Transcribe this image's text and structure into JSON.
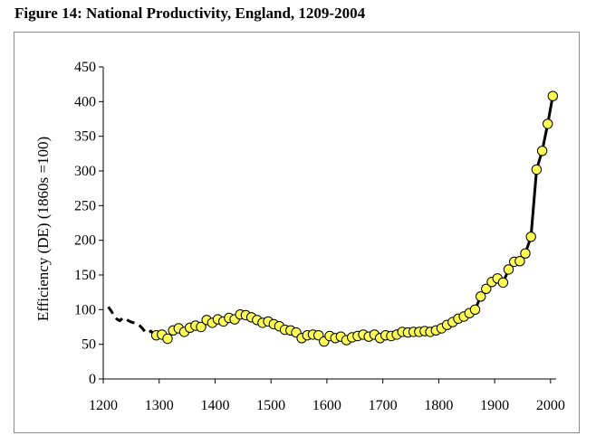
{
  "figure_title": "Figure 14:  National Productivity, England, 1209-2004",
  "colors": {
    "marker_fill": "#ffff55",
    "marker_stroke": "#000000",
    "line": "#000000",
    "frame": "#8c8c8c"
  },
  "chart_data": {
    "type": "line",
    "title": "",
    "xlabel": "",
    "ylabel": "Efficiency (DE) (1860s =100)",
    "xlim": [
      1200,
      2010
    ],
    "ylim": [
      0,
      450
    ],
    "xticks": [
      1200,
      1300,
      1400,
      1500,
      1600,
      1700,
      1800,
      1900,
      2000
    ],
    "yticks": [
      0,
      50,
      100,
      150,
      200,
      250,
      300,
      350,
      400,
      450
    ],
    "grid": false,
    "legend": "none",
    "series": [
      {
        "style": "dashed",
        "markers": false,
        "points": [
          [
            1209,
            104
          ],
          [
            1215,
            97
          ],
          [
            1220,
            90
          ],
          [
            1225,
            86
          ],
          [
            1230,
            84
          ],
          [
            1235,
            88
          ],
          [
            1240,
            87
          ],
          [
            1245,
            84
          ],
          [
            1250,
            82
          ],
          [
            1255,
            81
          ],
          [
            1260,
            80
          ],
          [
            1265,
            77
          ],
          [
            1270,
            73
          ],
          [
            1275,
            68
          ],
          [
            1280,
            66
          ],
          [
            1285,
            69
          ],
          [
            1290,
            65
          ]
        ]
      },
      {
        "style": "solid",
        "markers": true,
        "points": [
          [
            1295,
            63
          ],
          [
            1305,
            64
          ],
          [
            1315,
            58
          ],
          [
            1325,
            70
          ],
          [
            1335,
            73
          ],
          [
            1345,
            68
          ],
          [
            1355,
            74
          ],
          [
            1365,
            77
          ],
          [
            1375,
            75
          ],
          [
            1385,
            85
          ],
          [
            1395,
            81
          ],
          [
            1405,
            86
          ],
          [
            1415,
            83
          ],
          [
            1425,
            88
          ],
          [
            1435,
            86
          ],
          [
            1445,
            93
          ],
          [
            1455,
            92
          ],
          [
            1465,
            89
          ],
          [
            1475,
            85
          ],
          [
            1485,
            81
          ],
          [
            1495,
            83
          ],
          [
            1505,
            79
          ],
          [
            1515,
            76
          ],
          [
            1525,
            71
          ],
          [
            1535,
            70
          ],
          [
            1545,
            67
          ],
          [
            1555,
            59
          ],
          [
            1565,
            63
          ],
          [
            1575,
            64
          ],
          [
            1585,
            63
          ],
          [
            1595,
            54
          ],
          [
            1605,
            62
          ],
          [
            1615,
            59
          ],
          [
            1625,
            61
          ],
          [
            1635,
            56
          ],
          [
            1645,
            60
          ],
          [
            1655,
            62
          ],
          [
            1665,
            64
          ],
          [
            1675,
            61
          ],
          [
            1685,
            64
          ],
          [
            1695,
            59
          ],
          [
            1705,
            63
          ],
          [
            1715,
            62
          ],
          [
            1725,
            64
          ],
          [
            1735,
            68
          ],
          [
            1745,
            67
          ],
          [
            1755,
            68
          ],
          [
            1765,
            68
          ],
          [
            1775,
            69
          ],
          [
            1785,
            68
          ],
          [
            1795,
            70
          ],
          [
            1805,
            73
          ],
          [
            1815,
            78
          ],
          [
            1825,
            82
          ],
          [
            1835,
            87
          ],
          [
            1845,
            90
          ],
          [
            1855,
            95
          ],
          [
            1865,
            100
          ],
          [
            1875,
            119
          ],
          [
            1885,
            130
          ],
          [
            1895,
            140
          ],
          [
            1905,
            145
          ],
          [
            1915,
            139
          ],
          [
            1925,
            158
          ],
          [
            1935,
            169
          ],
          [
            1945,
            170
          ],
          [
            1955,
            181
          ],
          [
            1965,
            205
          ],
          [
            1975,
            302
          ],
          [
            1985,
            329
          ],
          [
            1995,
            368
          ],
          [
            2004,
            408
          ]
        ]
      }
    ]
  }
}
